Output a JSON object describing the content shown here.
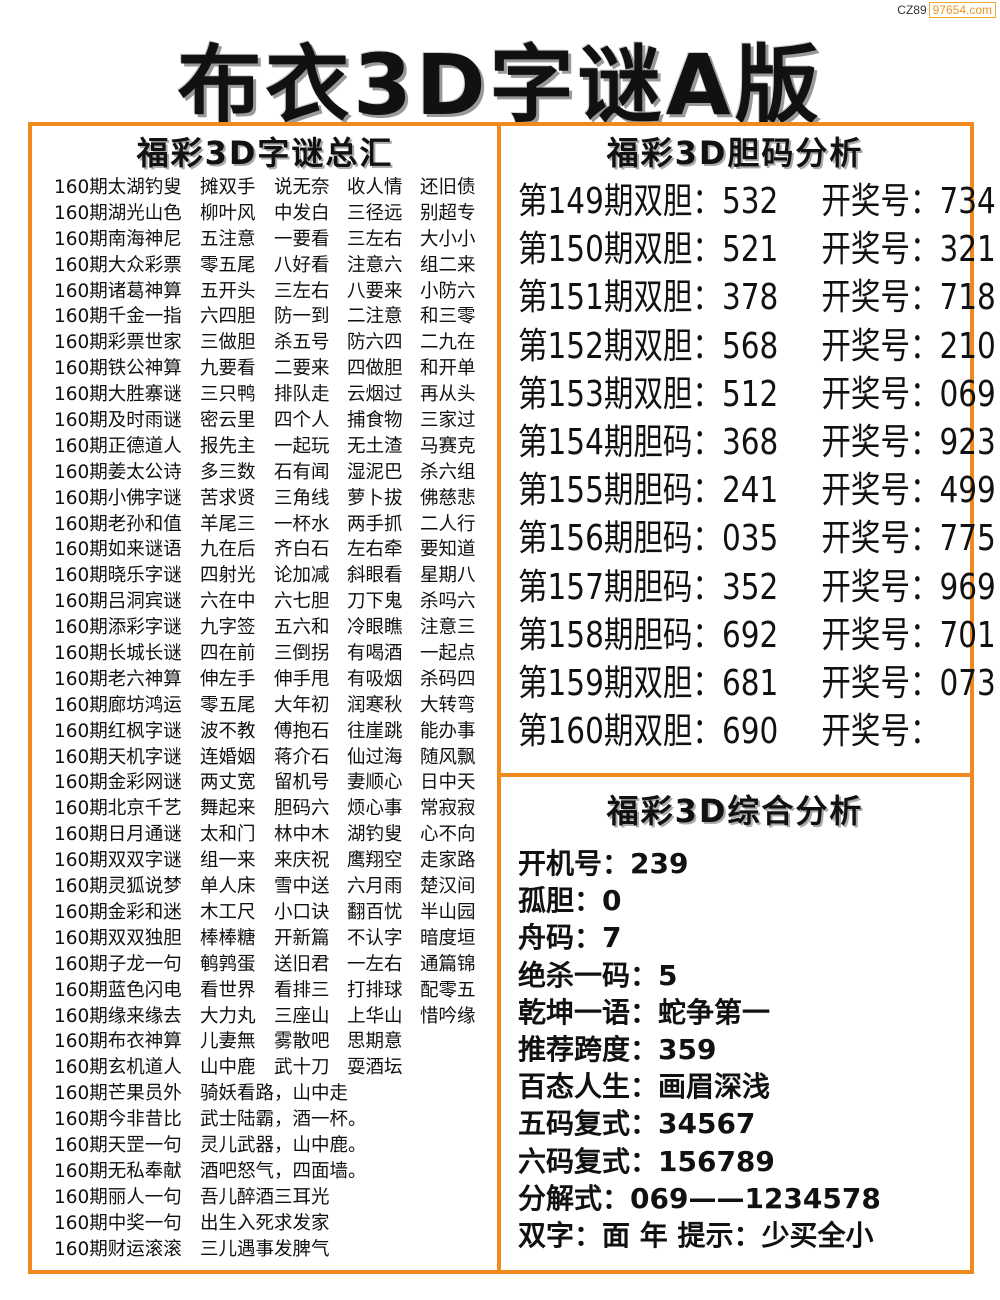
{
  "watermark": {
    "prefix": "CZ89",
    "domain": "97654.com"
  },
  "title": "布衣3D字谜A版",
  "left": {
    "title": "福彩3D字谜总汇",
    "rows": [
      [
        "160期太湖钓叟",
        "摊双手",
        "说无奈",
        "收人情",
        "还旧债"
      ],
      [
        "160期湖光山色",
        "柳叶风",
        "中发白",
        "三径远",
        "别超专"
      ],
      [
        "160期南海神尼",
        "五注意",
        "一要看",
        "三左右",
        "大小小"
      ],
      [
        "160期大众彩票",
        "零五尾",
        "八好看",
        "注意六",
        "组二来"
      ],
      [
        "160期诸葛神算",
        "五开头",
        "三左右",
        "八要来",
        "小防六"
      ],
      [
        "160期千金一指",
        "六四胆",
        "防一到",
        "二注意",
        "和三零"
      ],
      [
        "160期彩票世家",
        "三做胆",
        "杀五号",
        "防六四",
        "二九在"
      ],
      [
        "160期铁公神算",
        "九要看",
        "二要来",
        "四做胆",
        "和开单"
      ],
      [
        "160期大胜寨谜",
        "三只鸭",
        "排队走",
        "云烟过",
        "再从头"
      ],
      [
        "160期及时雨谜",
        "密云里",
        "四个人",
        "捕食物",
        "三家过"
      ],
      [
        "160期正德道人",
        "报先主",
        "一起玩",
        "无土渣",
        "马赛克"
      ],
      [
        "160期姜太公诗",
        "多三数",
        "石有闻",
        "湿泥巴",
        "杀六组"
      ],
      [
        "160期小佛字谜",
        "苦求贤",
        "三角线",
        "萝卜拔",
        "佛慈悲"
      ],
      [
        "160期老孙和值",
        "羊尾三",
        "一杯水",
        "两手抓",
        "二人行"
      ],
      [
        "160期如来谜语",
        "九在后",
        "齐白石",
        "左右牵",
        "要知道"
      ],
      [
        "160期晓乐字谜",
        "四射光",
        "论加减",
        "斜眼看",
        "星期八"
      ],
      [
        "160期吕洞宾谜",
        "六在中",
        "六七胆",
        "刀下鬼",
        "杀吗六"
      ],
      [
        "160期添彩字谜",
        "九字签",
        "五六和",
        "冷眼瞧",
        "注意三"
      ],
      [
        "160期长城长谜",
        "四在前",
        "三倒拐",
        "有喝酒",
        "一起点"
      ],
      [
        "160期老六神算",
        "伸左手",
        "伸手甩",
        "有吸烟",
        "杀码四"
      ],
      [
        "160期廊坊鸿运",
        "零五尾",
        "大年初",
        "润寒秋",
        "大转弯"
      ],
      [
        "160期红枫字谜",
        "波不教",
        "傅抱石",
        "往崖跳",
        "能办事"
      ],
      [
        "160期天机字谜",
        "连婚姻",
        "蒋介石",
        "仙过海",
        "随风飘"
      ],
      [
        "160期金彩网谜",
        "两丈宽",
        "留机号",
        "妻顺心",
        "日中天"
      ],
      [
        "160期北京千艺",
        "舞起来",
        "胆码六",
        "烦心事",
        "常寂寂"
      ],
      [
        "160期日月通谜",
        "太和门",
        "林中木",
        "湖钓叟",
        "心不向"
      ],
      [
        "160期双双字谜",
        "组一来",
        "来庆祝",
        "鹰翔空",
        "走家路"
      ],
      [
        "160期灵狐说梦",
        "单人床",
        "雪中送",
        "六月雨",
        "楚汉间"
      ],
      [
        "160期金彩和迷",
        "木工尺",
        "小口诀",
        "翻百忧",
        "半山园"
      ],
      [
        "160期双双独胆",
        "棒棒糖",
        "开新篇",
        "不认字",
        "暗度垣"
      ],
      [
        "160期子龙一句",
        "鹌鹑蛋",
        "送旧君",
        "一左右",
        "通篇锦"
      ],
      [
        "160期蓝色闪电",
        "看世界",
        "看排三",
        "打排球",
        "配零五"
      ],
      [
        "160期缘来缘去",
        "大力丸",
        "三座山",
        "上华山",
        "惜吟缘"
      ],
      [
        "160期布衣神算",
        "儿妻無",
        "雾散吧",
        "思期意"
      ],
      [
        "160期玄机道人",
        "山中鹿",
        "武十刀",
        "耍酒坛"
      ],
      [
        "160期芒果员外",
        "骑妖看路，山中走"
      ],
      [
        "160期今非昔比",
        "武士陆霸，酒一杯。"
      ],
      [
        "160期天罡一句",
        "灵儿武器，山中鹿。"
      ],
      [
        "160期无私奉献",
        "酒吧怒气，四面墙。"
      ],
      [
        "160期丽人一句",
        "吾儿醉酒三耳光"
      ],
      [
        "160期中奖一句",
        "出生入死求发家"
      ],
      [
        "160期财运滚滚",
        "三儿遇事发脾气"
      ]
    ]
  },
  "dan": {
    "title": "福彩3D胆码分析",
    "rows": [
      {
        "label": "第149期双胆：532",
        "result": "开奖号：734"
      },
      {
        "label": "第150期双胆：521",
        "result": "开奖号：321"
      },
      {
        "label": "第151期双胆：378",
        "result": "开奖号：718"
      },
      {
        "label": "第152期双胆：568",
        "result": "开奖号：210"
      },
      {
        "label": "第153期双胆：512",
        "result": "开奖号：069"
      },
      {
        "label": "第154期胆码：368",
        "result": "开奖号：923"
      },
      {
        "label": "第155期胆码：241",
        "result": "开奖号：499"
      },
      {
        "label": "第156期胆码：035",
        "result": "开奖号：775"
      },
      {
        "label": "第157期胆码：352",
        "result": "开奖号：969"
      },
      {
        "label": "第158期胆码：692",
        "result": "开奖号：701"
      },
      {
        "label": "第159期双胆：681",
        "result": "开奖号：073"
      },
      {
        "label": "第160期双胆：690",
        "result": "开奖号："
      }
    ]
  },
  "summary": {
    "title": "福彩3D综合分析",
    "rows": [
      "开机号：239",
      "孤胆：0",
      "舟码：7",
      "绝杀一码：5",
      "乾坤一语：蛇争第一",
      "推荐跨度：359",
      "百态人生：画眉深浅",
      "五码复式：34567",
      "六码复式：156789",
      "分解式：069——1234578",
      "双字：面  年  提示：少买全小"
    ]
  },
  "colors": {
    "border": "#f08a1c",
    "text": "#111111"
  }
}
